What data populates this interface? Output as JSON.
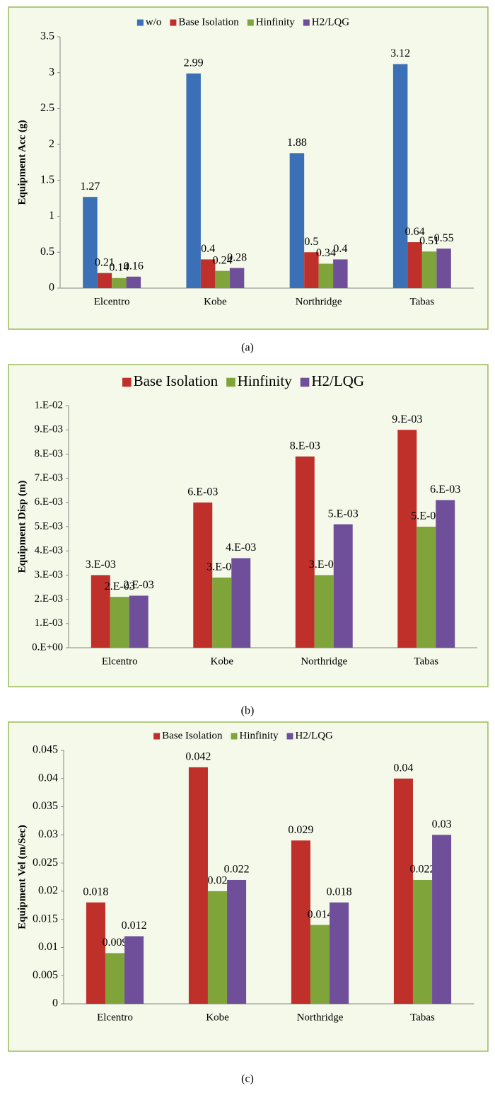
{
  "chart_data": [
    {
      "type": "bar",
      "caption": "(a)",
      "y_label": "Equipment Acc (g)",
      "categories": [
        "Elcentro",
        "Kobe",
        "Northridge",
        "Tabas"
      ],
      "series": [
        {
          "name": "w/o",
          "color": "#3b6fb6",
          "values": [
            1.27,
            2.99,
            1.88,
            3.12
          ]
        },
        {
          "name": "Base Isolation",
          "color": "#c0302b",
          "values": [
            0.21,
            0.4,
            0.5,
            0.64
          ]
        },
        {
          "name": "Hinfinity",
          "color": "#7fa53a",
          "values": [
            0.14,
            0.24,
            0.34,
            0.51
          ]
        },
        {
          "name": "H2/LQG",
          "color": "#6f4f9a",
          "values": [
            0.16,
            0.28,
            0.4,
            0.55
          ]
        }
      ],
      "ylim": [
        0,
        3.5
      ],
      "yticks": [
        0,
        0.5,
        1,
        1.5,
        2,
        2.5,
        3,
        3.5
      ],
      "legend": "top",
      "grid": false
    },
    {
      "type": "bar",
      "caption": "(b)",
      "y_label": "Equipment Disp (m)",
      "categories": [
        "Elcentro",
        "Kobe",
        "Northridge",
        "Tabas"
      ],
      "series": [
        {
          "name": "Base Isolation",
          "color": "#c0302b",
          "values": [
            0.003,
            0.006,
            0.0079,
            0.009
          ],
          "value_labels": [
            "3.E-03",
            "6.E-03",
            "8.E-03",
            "9.E-03"
          ]
        },
        {
          "name": "Hinfinity",
          "color": "#7fa53a",
          "values": [
            0.0021,
            0.0029,
            0.003,
            0.005
          ],
          "value_labels": [
            "2.E-03",
            "3.E-03",
            "3.E-03",
            "5.E-03"
          ]
        },
        {
          "name": "H2/LQG",
          "color": "#6f4f9a",
          "values": [
            0.00215,
            0.0037,
            0.0051,
            0.0061
          ],
          "value_labels": [
            "2.E-03",
            "4.E-03",
            "5.E-03",
            "6.E-03"
          ]
        }
      ],
      "ylim": [
        0,
        0.01
      ],
      "yticks": [
        {
          "value": 0,
          "label": "0.E+00"
        },
        {
          "value": 0.001,
          "label": "1.E-03"
        },
        {
          "value": 0.002,
          "label": "2.E-03"
        },
        {
          "value": 0.003,
          "label": "3.E-03"
        },
        {
          "value": 0.004,
          "label": "4.E-03"
        },
        {
          "value": 0.005,
          "label": "5.E-03"
        },
        {
          "value": 0.006,
          "label": "6.E-03"
        },
        {
          "value": 0.007,
          "label": "7.E-03"
        },
        {
          "value": 0.008,
          "label": "8.E-03"
        },
        {
          "value": 0.009,
          "label": "9.E-03"
        },
        {
          "value": 0.01,
          "label": "1.E-02"
        }
      ],
      "legend": "top",
      "grid": false
    },
    {
      "type": "bar",
      "caption": "(c)",
      "y_label": "Equipment Vel (m/Sec)",
      "categories": [
        "Elcentro",
        "Kobe",
        "Northridge",
        "Tabas"
      ],
      "series": [
        {
          "name": "Base Isolation",
          "color": "#c0302b",
          "values": [
            0.018,
            0.042,
            0.029,
            0.04
          ]
        },
        {
          "name": "Hinfinity",
          "color": "#7fa53a",
          "values": [
            0.009,
            0.02,
            0.014,
            0.022
          ]
        },
        {
          "name": "H2/LQG",
          "color": "#6f4f9a",
          "values": [
            0.012,
            0.022,
            0.018,
            0.03
          ]
        }
      ],
      "ylim": [
        0,
        0.045
      ],
      "yticks": [
        0,
        0.005,
        0.01,
        0.015,
        0.02,
        0.025,
        0.03,
        0.035,
        0.04,
        0.045
      ],
      "legend": "top",
      "grid": false
    }
  ]
}
